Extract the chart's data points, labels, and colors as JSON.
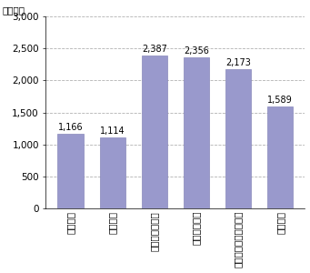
{
  "categories": [
    "東京大学",
    "日本平均",
    "スタンフォード",
    "プリンストン",
    "カリフォルニアテック",
    "米国平均"
  ],
  "values": [
    1166,
    1114,
    2387,
    2356,
    2173,
    1589
  ],
  "bar_color": "#9999cc",
  "bar_edge_color": "#8888bb",
  "ylabel": "（万円）",
  "yticks": [
    0,
    500,
    1000,
    1500,
    2000,
    2500,
    3000
  ],
  "ylim": [
    0,
    3000
  ],
  "grid_color": "#aaaaaa",
  "bg_color": "#ffffff",
  "value_labels": [
    "1,166",
    "1,114",
    "2,387",
    "2,356",
    "2,173",
    "1,589"
  ],
  "tick_fontsize": 7.5,
  "value_fontsize": 7.0,
  "bar_width": 0.62
}
